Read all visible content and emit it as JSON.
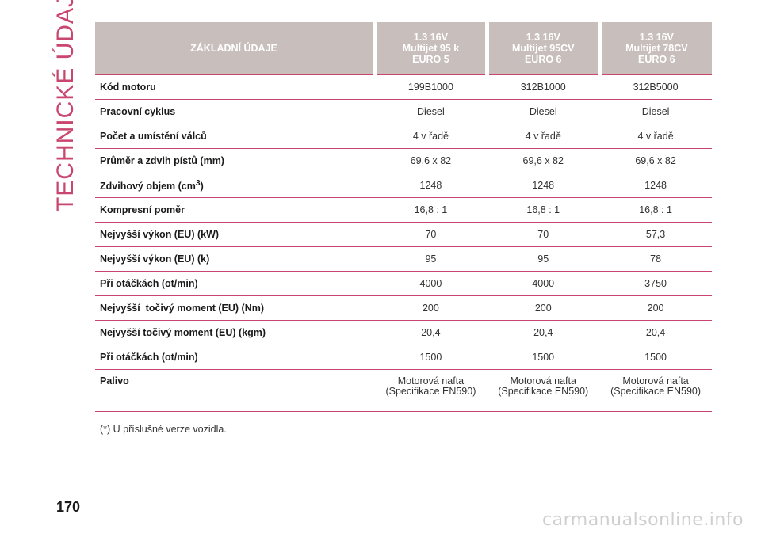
{
  "side_title": "TECHNICKÉ ÚDAJE",
  "page_number": "170",
  "watermark": "carmanualsonline.info",
  "table": {
    "header": {
      "label": "ZÁKLADNÍ ÚDAJE",
      "columns": [
        {
          "line1": "1.3 16V",
          "line2": "Multijet 95 k",
          "line3": "EURO 5"
        },
        {
          "line1": "1.3 16V",
          "line2": "Multijet 95CV",
          "line3": "EURO 6"
        },
        {
          "line1": "1.3 16V",
          "line2": "Multijet 78CV",
          "line3": "EURO 6"
        }
      ]
    },
    "rows": [
      {
        "label": "Kód motoru",
        "values": [
          "199B1000",
          "312B1000",
          "312B5000"
        ]
      },
      {
        "label": "Pracovní cyklus",
        "values": [
          "Diesel",
          "Diesel",
          "Diesel"
        ]
      },
      {
        "label": "Počet a umístění válců",
        "values": [
          "4 v řadě",
          "4 v řadě",
          "4 v řadě"
        ]
      },
      {
        "label": "Průměr a zdvih pístů (mm)",
        "values": [
          "69,6 x 82",
          "69,6 x 82",
          "69,6 x 82"
        ]
      },
      {
        "label": "Zdvihový objem (cm",
        "label_sup": "3",
        "label_end": ")",
        "values": [
          "1248",
          "1248",
          "1248"
        ]
      },
      {
        "label": "Kompresní poměr",
        "values": [
          "16,8 : 1",
          "16,8 : 1",
          "16,8 : 1"
        ]
      },
      {
        "label": "Nejvyšší výkon (EU) (kW)",
        "values": [
          "70",
          "70",
          "57,3"
        ]
      },
      {
        "label": "Nejvyšší výkon (EU) (k)",
        "values": [
          "95",
          "95",
          "78"
        ]
      },
      {
        "label": "Při otáčkách (ot/min)",
        "values": [
          "4000",
          "4000",
          "3750"
        ]
      },
      {
        "label": "Nejvyšší  točivý moment (EU) (Nm)",
        "values": [
          "200",
          "200",
          "200"
        ]
      },
      {
        "label": "Nejvyšší točivý moment (EU) (kgm)",
        "values": [
          "20,4",
          "20,4",
          "20,4"
        ]
      },
      {
        "label": "Při otáčkách (ot/min)",
        "values": [
          "1500",
          "1500",
          "1500"
        ]
      }
    ],
    "fuel_row": {
      "label": "Palivo",
      "values": [
        {
          "line1": "Motorová nafta",
          "line2": "(Specifikace EN590)"
        },
        {
          "line1": "Motorová nafta",
          "line2": "(Specifikace EN590)"
        },
        {
          "line1": "Motorová nafta",
          "line2": "(Specifikace EN590)"
        }
      ]
    }
  },
  "footnote": "(*) U příslušné verze vozidla.",
  "colors": {
    "accent": "#c9466f",
    "header_bg": "#c8bfbd"
  }
}
